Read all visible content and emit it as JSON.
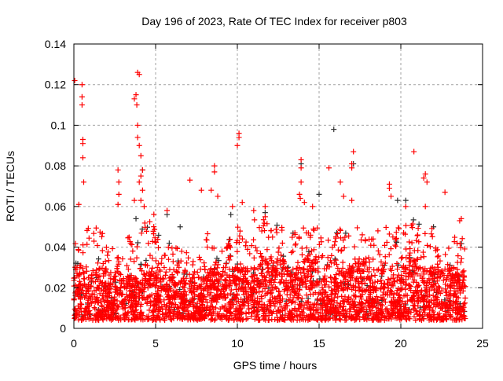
{
  "chart_data": {
    "type": "scatter",
    "title": "Day 196 of 2023, Rate Of TEC Index for receiver p803",
    "xlabel": "GPS time / hours",
    "ylabel": "ROTI / TECUs",
    "xlim": [
      0,
      25
    ],
    "ylim": [
      0,
      0.14
    ],
    "xticks": [
      "0",
      "5",
      "10",
      "15",
      "20",
      "25"
    ],
    "yticks": [
      "0",
      "0.02",
      "0.04",
      "0.06",
      "0.08",
      "0.1",
      "0.12",
      "0.14"
    ],
    "grid": true,
    "legend": "none",
    "series_colors": {
      "primary": "#ff0000",
      "secondary": "#333333"
    },
    "density_bands_note": "dense scatter per hour: [core_high, fringe_high] ROTI, floor ~0.004",
    "density_bands": [
      [
        0.03,
        0.05
      ],
      [
        0.03,
        0.052
      ],
      [
        0.028,
        0.04
      ],
      [
        0.025,
        0.045
      ],
      [
        0.03,
        0.06
      ],
      [
        0.03,
        0.045
      ],
      [
        0.025,
        0.04
      ],
      [
        0.025,
        0.035
      ],
      [
        0.03,
        0.05
      ],
      [
        0.03,
        0.045
      ],
      [
        0.03,
        0.05
      ],
      [
        0.035,
        0.055
      ],
      [
        0.035,
        0.05
      ],
      [
        0.03,
        0.05
      ],
      [
        0.035,
        0.05
      ],
      [
        0.025,
        0.045
      ],
      [
        0.03,
        0.05
      ],
      [
        0.035,
        0.05
      ],
      [
        0.03,
        0.045
      ],
      [
        0.03,
        0.05
      ],
      [
        0.035,
        0.052
      ],
      [
        0.03,
        0.05
      ],
      [
        0.03,
        0.04
      ],
      [
        0.03,
        0.045
      ]
    ],
    "outliers_red": [
      [
        0.05,
        0.122
      ],
      [
        0.5,
        0.12
      ],
      [
        0.5,
        0.114
      ],
      [
        0.5,
        0.11
      ],
      [
        0.55,
        0.093
      ],
      [
        0.55,
        0.091
      ],
      [
        0.55,
        0.084
      ],
      [
        0.6,
        0.072
      ],
      [
        0.3,
        0.061
      ],
      [
        2.7,
        0.078
      ],
      [
        2.75,
        0.072
      ],
      [
        2.75,
        0.066
      ],
      [
        2.7,
        0.061
      ],
      [
        3.7,
        0.063
      ],
      [
        3.9,
        0.126
      ],
      [
        4.0,
        0.125
      ],
      [
        3.8,
        0.115
      ],
      [
        3.85,
        0.11
      ],
      [
        3.7,
        0.113
      ],
      [
        3.9,
        0.1
      ],
      [
        3.9,
        0.094
      ],
      [
        4.0,
        0.09
      ],
      [
        4.1,
        0.085
      ],
      [
        4.2,
        0.078
      ],
      [
        4.1,
        0.075
      ],
      [
        4.0,
        0.072
      ],
      [
        4.2,
        0.068
      ],
      [
        4.1,
        0.063
      ],
      [
        4.3,
        0.06
      ],
      [
        5.7,
        0.058
      ],
      [
        7.1,
        0.073
      ],
      [
        7.8,
        0.068
      ],
      [
        8.6,
        0.08
      ],
      [
        8.6,
        0.077
      ],
      [
        8.4,
        0.068
      ],
      [
        8.8,
        0.065
      ],
      [
        9.7,
        0.06
      ],
      [
        10.1,
        0.096
      ],
      [
        10.1,
        0.094
      ],
      [
        10.0,
        0.09
      ],
      [
        10.3,
        0.062
      ],
      [
        11.0,
        0.058
      ],
      [
        11.7,
        0.06
      ],
      [
        13.9,
        0.083
      ],
      [
        13.9,
        0.079
      ],
      [
        13.9,
        0.072
      ],
      [
        13.85,
        0.064
      ],
      [
        13.8,
        0.066
      ],
      [
        14.1,
        0.062
      ],
      [
        14.6,
        0.06
      ],
      [
        15.6,
        0.079
      ],
      [
        16.3,
        0.072
      ],
      [
        16.5,
        0.065
      ],
      [
        17.0,
        0.063
      ],
      [
        17.1,
        0.087
      ],
      [
        17.0,
        0.081
      ],
      [
        17.0,
        0.079
      ],
      [
        19.3,
        0.071
      ],
      [
        19.3,
        0.069
      ],
      [
        19.4,
        0.065
      ],
      [
        20.8,
        0.087
      ],
      [
        21.5,
        0.076
      ],
      [
        21.4,
        0.074
      ],
      [
        21.6,
        0.072
      ],
      [
        21.5,
        0.06
      ],
      [
        22.7,
        0.067
      ],
      [
        23.7,
        0.054
      ],
      [
        23.6,
        0.053
      ],
      [
        18.6,
        0.048
      ],
      [
        20.3,
        0.06
      ]
    ],
    "outliers_black": [
      [
        15.9,
        0.098
      ],
      [
        13.9,
        0.081
      ],
      [
        17.1,
        0.081
      ],
      [
        4.2,
        0.078
      ],
      [
        5.7,
        0.056
      ],
      [
        15.0,
        0.066
      ],
      [
        19.8,
        0.063
      ],
      [
        20.3,
        0.063
      ],
      [
        9.6,
        0.056
      ],
      [
        11.7,
        0.057
      ],
      [
        22.0,
        0.05
      ],
      [
        6.5,
        0.05
      ],
      [
        3.8,
        0.054
      ]
    ]
  }
}
